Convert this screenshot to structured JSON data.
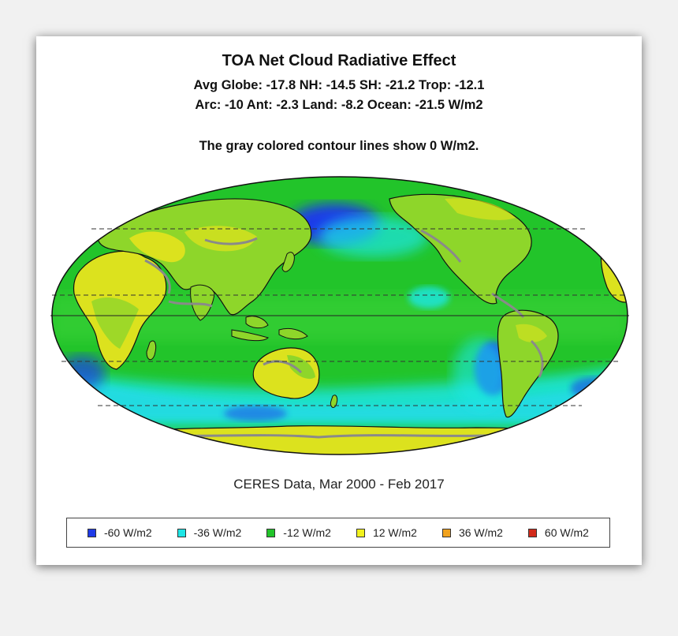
{
  "header": {
    "title": "TOA Net Cloud Radiative Effect",
    "stats_line1": "Avg Globe: -17.8  NH: -14.5  SH: -21.2  Trop: -12.1",
    "stats_line2": "Arc: -10  Ant: -2.3  Land: -8.2 Ocean: -21.5 W/m2",
    "note": "The gray colored contour lines show 0 W/m2."
  },
  "source": "CERES Data, Mar 2000 - Feb 2017",
  "legend": [
    {
      "label": "-60 W/m2",
      "color": "#1f3be8"
    },
    {
      "label": "-36 W/m2",
      "color": "#1ee6e6"
    },
    {
      "label": "-12 W/m2",
      "color": "#22c42a"
    },
    {
      "label": "12 W/m2",
      "color": "#f2f21e"
    },
    {
      "label": "36 W/m2",
      "color": "#f0a21e"
    },
    {
      "label": "60 W/m2",
      "color": "#d22a1a"
    }
  ],
  "map": {
    "projection": "mollweide",
    "colors": {
      "ocean": "#22c42a",
      "cyan": "#1ee6e6",
      "blue": "#1f3be8",
      "yellow": "#dce21e",
      "lime": "#8ed62a",
      "contour_gray": "#8a8a8a",
      "coast": "#111111"
    }
  }
}
